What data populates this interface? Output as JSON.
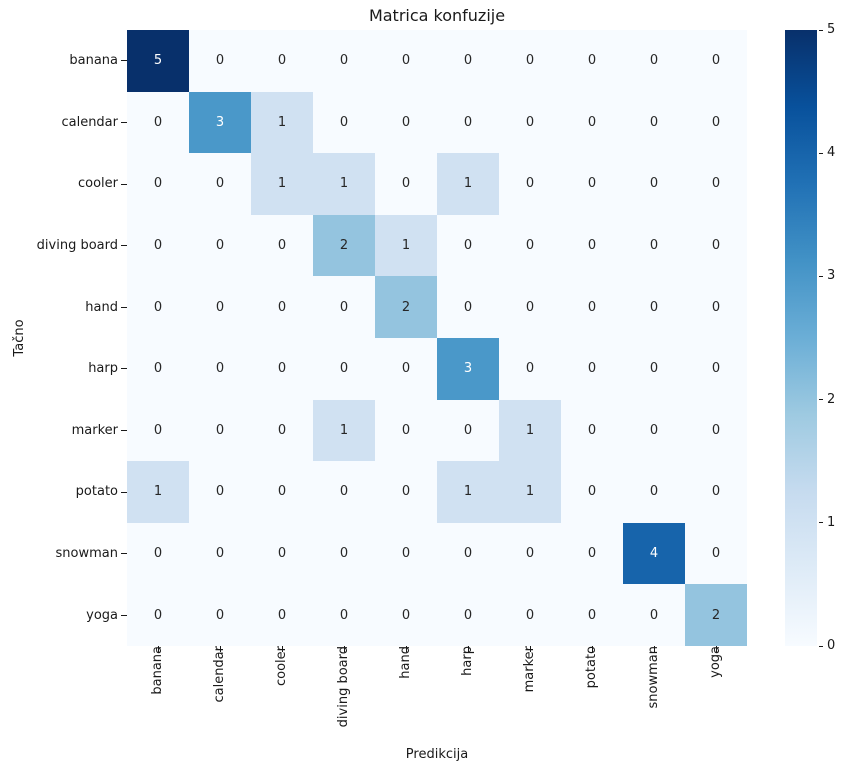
{
  "chart_data": {
    "type": "heatmap",
    "title": "Matrica konfuzije",
    "xlabel": "Predikcija",
    "ylabel": "Tačno",
    "x_categories": [
      "banana",
      "calendar",
      "cooler",
      "diving board",
      "hand",
      "harp",
      "marker",
      "potato",
      "snowman",
      "yoga"
    ],
    "y_categories": [
      "banana",
      "calendar",
      "cooler",
      "diving board",
      "hand",
      "harp",
      "marker",
      "potato",
      "snowman",
      "yoga"
    ],
    "matrix": [
      [
        5,
        0,
        0,
        0,
        0,
        0,
        0,
        0,
        0,
        0
      ],
      [
        0,
        3,
        1,
        0,
        0,
        0,
        0,
        0,
        0,
        0
      ],
      [
        0,
        0,
        1,
        1,
        0,
        1,
        0,
        0,
        0,
        0
      ],
      [
        0,
        0,
        0,
        2,
        1,
        0,
        0,
        0,
        0,
        0
      ],
      [
        0,
        0,
        0,
        0,
        2,
        0,
        0,
        0,
        0,
        0
      ],
      [
        0,
        0,
        0,
        0,
        0,
        3,
        0,
        0,
        0,
        0
      ],
      [
        0,
        0,
        0,
        1,
        0,
        0,
        1,
        0,
        0,
        0
      ],
      [
        1,
        0,
        0,
        0,
        0,
        1,
        1,
        0,
        0,
        0
      ],
      [
        0,
        0,
        0,
        0,
        0,
        0,
        0,
        0,
        4,
        0
      ],
      [
        0,
        0,
        0,
        0,
        0,
        0,
        0,
        0,
        0,
        2
      ]
    ],
    "colormap": "Blues",
    "vmin": 0,
    "vmax": 5,
    "colorbar_ticks": [
      0,
      1,
      2,
      3,
      4,
      5
    ],
    "legend_position": "right",
    "grid": false,
    "value_colors": {
      "0": "#f7fbff",
      "1": "#d0e1f2",
      "2": "#94c4df",
      "3": "#4a98c9",
      "4": "#1764ab",
      "5": "#08306b"
    },
    "annot_text_dark": "#262626",
    "annot_text_light": "#ffffff",
    "light_text_threshold": 3,
    "colorbar_gradient": [
      "#f7fbff",
      "#deebf7",
      "#c6dbef",
      "#9ecae1",
      "#6baed6",
      "#4292c6",
      "#2171b5",
      "#08519c",
      "#08306b"
    ]
  }
}
